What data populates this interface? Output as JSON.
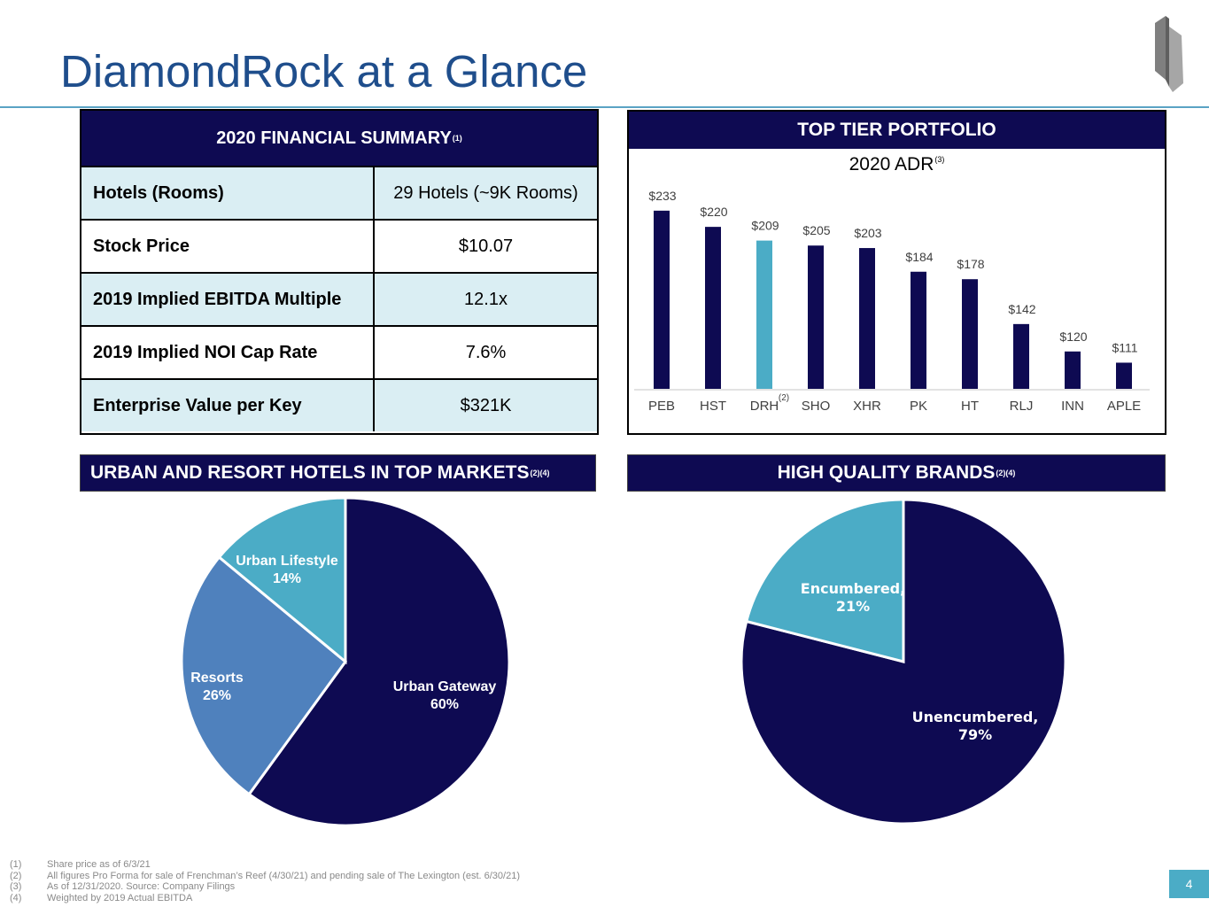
{
  "title": "DiamondRock at a Glance",
  "financial_summary": {
    "header": "2020 FINANCIAL SUMMARY",
    "header_note": "(1)",
    "rows": [
      {
        "label": "Hotels (Rooms)",
        "value": "29 Hotels (~9K Rooms)"
      },
      {
        "label": "Stock Price",
        "value": "$10.07"
      },
      {
        "label": "2019 Implied EBITDA Multiple",
        "value": "12.1x"
      },
      {
        "label": "2019 Implied NOI Cap Rate",
        "value": "7.6%"
      },
      {
        "label": "Enterprise Value per Key",
        "value": "$321K"
      }
    ]
  },
  "top_tier": {
    "header": "TOP TIER PORTFOLIO",
    "subtitle": "2020 ADR",
    "subtitle_note": "(3)",
    "drh_note": "(2)"
  },
  "urban_header": "URBAN AND RESORT HOTELS IN TOP MARKETS",
  "urban_note": "(2)(4)",
  "brands_header": "HIGH QUALITY BRANDS",
  "brands_note": "(2)(4)",
  "colors": {
    "navy": "#0e0a52",
    "teal": "#4bacc6",
    "blue": "#4f81bd",
    "title_blue": "#1f4e8c"
  },
  "chart_data": [
    {
      "type": "bar",
      "title": "2020 ADR",
      "categories": [
        "PEB",
        "HST",
        "DRH",
        "SHO",
        "XHR",
        "PK",
        "HT",
        "RLJ",
        "INN",
        "APLE"
      ],
      "values": [
        233,
        220,
        209,
        205,
        203,
        184,
        178,
        142,
        120,
        111
      ],
      "value_labels": [
        "$233",
        "$220",
        "$209",
        "$205",
        "$203",
        "$184",
        "$178",
        "$142",
        "$120",
        "$111"
      ],
      "highlight": "DRH",
      "ylim": [
        90,
        240
      ],
      "grid": false
    },
    {
      "type": "pie",
      "title": "URBAN AND RESORT HOTELS IN TOP MARKETS",
      "slices": [
        {
          "label": "Urban Gateway",
          "pct_label": "60%",
          "value": 60,
          "color": "#0e0a52"
        },
        {
          "label": "Resorts",
          "pct_label": "26%",
          "value": 26,
          "color": "#4f81bd"
        },
        {
          "label": "Urban Lifestyle",
          "pct_label": "14%",
          "value": 14,
          "color": "#4bacc6"
        }
      ]
    },
    {
      "type": "pie",
      "title": "HIGH QUALITY BRANDS",
      "slices": [
        {
          "label": "Unencumbered,",
          "pct_label": "79%",
          "value": 79,
          "color": "#0e0a52"
        },
        {
          "label": "Encumbered,",
          "pct_label": "21%",
          "value": 21,
          "color": "#4bacc6"
        }
      ]
    }
  ],
  "footnotes": [
    {
      "num": "(1)",
      "text": "Share price as of 6/3/21"
    },
    {
      "num": "(2)",
      "text": "All figures Pro Forma for sale of Frenchman’s Reef (4/30/21) and pending sale of The Lexington (est. 6/30/21)"
    },
    {
      "num": "(3)",
      "text": "As of 12/31/2020. Source: Company Filings"
    },
    {
      "num": "(4)",
      "text": "Weighted by 2019 Actual EBITDA"
    }
  ],
  "page_number": "4"
}
